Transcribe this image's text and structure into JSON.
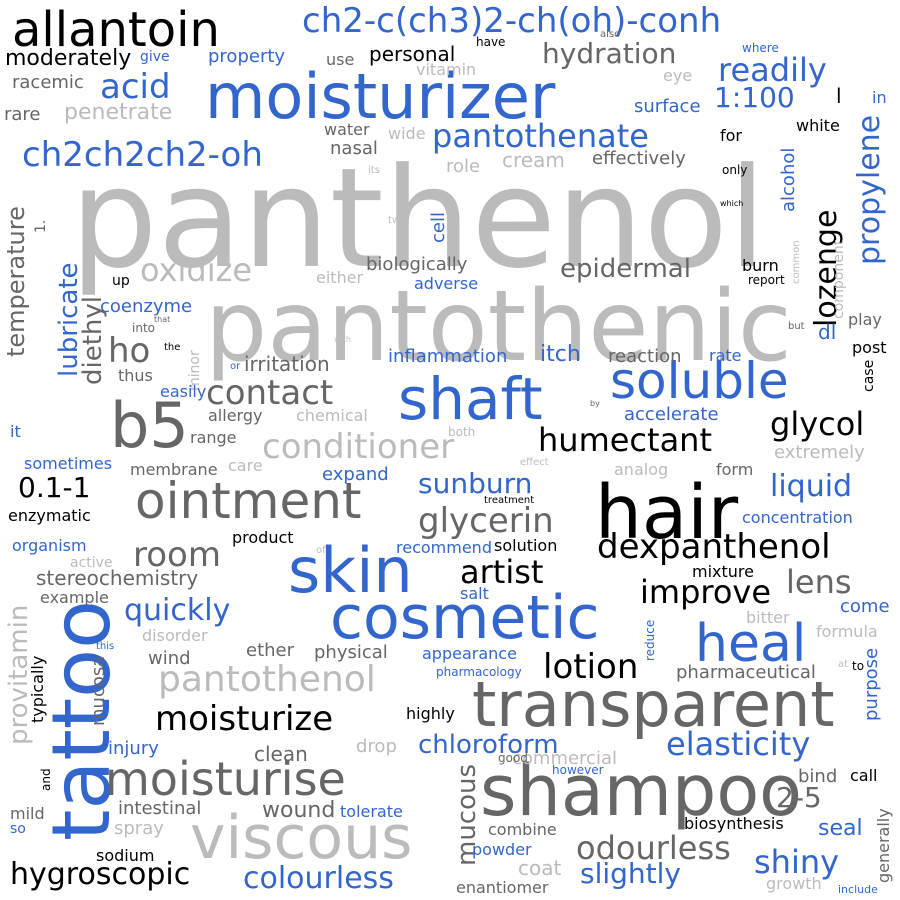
{
  "colors": {
    "black": "#000000",
    "dark_gray": "#666666",
    "light_gray": "#bbbbbb",
    "blue": "#3366cc"
  },
  "words": [
    {
      "text": "panthenol",
      "color": "light_gray"
    },
    {
      "text": "pantothenic",
      "color": "light_gray"
    },
    {
      "text": "hair",
      "color": "black"
    },
    {
      "text": "moisturizer",
      "color": "blue"
    },
    {
      "text": "tattoo",
      "color": "blue"
    },
    {
      "text": "shampoo",
      "color": "dark_gray"
    },
    {
      "text": "transparent",
      "color": "dark_gray"
    },
    {
      "text": "cosmetic",
      "color": "blue"
    },
    {
      "text": "viscous",
      "color": "light_gray"
    },
    {
      "text": "skin",
      "color": "blue"
    },
    {
      "text": "shaft",
      "color": "blue"
    },
    {
      "text": "ointment",
      "color": "dark_gray"
    },
    {
      "text": "soluble",
      "color": "blue"
    },
    {
      "text": "allantoin",
      "color": "black"
    },
    {
      "text": "moisturise",
      "color": "dark_gray"
    },
    {
      "text": "b5",
      "color": "dark_gray"
    },
    {
      "text": "heal",
      "color": "blue"
    },
    {
      "text": "ch2-c(ch3)2-ch(oh)-conh",
      "color": "blue"
    },
    {
      "text": "dexpanthenol",
      "color": "black"
    },
    {
      "text": "pantothenol",
      "color": "light_gray"
    },
    {
      "text": "moisturize",
      "color": "black"
    },
    {
      "text": "conditioner",
      "color": "light_gray"
    },
    {
      "text": "glycerin",
      "color": "dark_gray"
    },
    {
      "text": "humectant",
      "color": "black"
    },
    {
      "text": "contact",
      "color": "dark_gray"
    },
    {
      "text": "pantothenate",
      "color": "blue"
    },
    {
      "text": "elasticity",
      "color": "blue"
    },
    {
      "text": "lotion",
      "color": "black"
    },
    {
      "text": "odourless",
      "color": "dark_gray"
    },
    {
      "text": "ch2ch2ch2-oh",
      "color": "blue"
    },
    {
      "text": "room",
      "color": "dark_gray"
    },
    {
      "text": "improve",
      "color": "black"
    },
    {
      "text": "artist",
      "color": "black"
    },
    {
      "text": "quickly",
      "color": "blue"
    },
    {
      "text": "shiny",
      "color": "blue"
    },
    {
      "text": "acid",
      "color": "blue"
    },
    {
      "text": "oxidize",
      "color": "light_gray"
    },
    {
      "text": "hygroscopic",
      "color": "black"
    },
    {
      "text": "colourless",
      "color": "blue"
    },
    {
      "text": "glycol",
      "color": "black"
    },
    {
      "text": "readily",
      "color": "blue"
    },
    {
      "text": "lens",
      "color": "dark_gray"
    },
    {
      "text": "liquid",
      "color": "blue"
    },
    {
      "text": "hydration",
      "color": "dark_gray"
    },
    {
      "text": "sunburn",
      "color": "blue"
    },
    {
      "text": "lozenge",
      "color": "black"
    },
    {
      "text": "propylene",
      "color": "blue"
    },
    {
      "text": "chloroform",
      "color": "blue"
    },
    {
      "text": "slightly",
      "color": "blue"
    },
    {
      "text": "epidermal",
      "color": "dark_gray"
    },
    {
      "text": "1:100",
      "color": "blue"
    },
    {
      "text": "0.1-1",
      "color": "black"
    },
    {
      "text": "2-5",
      "color": "dark_gray"
    },
    {
      "text": "mucous",
      "color": "dark_gray"
    },
    {
      "text": "ho",
      "color": "dark_gray"
    },
    {
      "text": "lubricate",
      "color": "blue"
    },
    {
      "text": "provitamin",
      "color": "light_gray"
    },
    {
      "text": "diethyl",
      "color": "dark_gray"
    },
    {
      "text": "temperature",
      "color": "dark_gray"
    },
    {
      "text": "moderately",
      "color": "black"
    },
    {
      "text": "biologically",
      "color": "dark_gray"
    },
    {
      "text": "coenzyme",
      "color": "blue"
    },
    {
      "text": "irritation",
      "color": "dark_gray"
    },
    {
      "text": "inflammation",
      "color": "blue"
    },
    {
      "text": "itch",
      "color": "blue"
    },
    {
      "text": "reaction",
      "color": "dark_gray"
    },
    {
      "text": "rate",
      "color": "blue"
    },
    {
      "text": "stereochemistry",
      "color": "dark_gray"
    },
    {
      "text": "wound",
      "color": "dark_gray"
    },
    {
      "text": "intestinal",
      "color": "dark_gray"
    },
    {
      "text": "tolerate",
      "color": "blue"
    },
    {
      "text": "spray",
      "color": "light_gray"
    },
    {
      "text": "sodium",
      "color": "black"
    },
    {
      "text": "clean",
      "color": "dark_gray"
    },
    {
      "text": "enzymatic",
      "color": "black"
    },
    {
      "text": "mucosa",
      "color": "dark_gray"
    },
    {
      "text": "wind",
      "color": "dark_gray"
    },
    {
      "text": "ether",
      "color": "dark_gray"
    },
    {
      "text": "physical",
      "color": "dark_gray"
    },
    {
      "text": "appearance",
      "color": "blue"
    },
    {
      "text": "pharmaceutical",
      "color": "dark_gray"
    },
    {
      "text": "purpose",
      "color": "blue"
    },
    {
      "text": "highly",
      "color": "black"
    },
    {
      "text": "injury",
      "color": "blue"
    },
    {
      "text": "drop",
      "color": "light_gray"
    },
    {
      "text": "commercial",
      "color": "light_gray"
    },
    {
      "text": "bind",
      "color": "dark_gray"
    },
    {
      "text": "call",
      "color": "black"
    },
    {
      "text": "seal",
      "color": "blue"
    },
    {
      "text": "generally",
      "color": "dark_gray"
    },
    {
      "text": "biosynthesis",
      "color": "black"
    },
    {
      "text": "combine",
      "color": "dark_gray"
    },
    {
      "text": "powder",
      "color": "blue"
    },
    {
      "text": "coat",
      "color": "light_gray"
    },
    {
      "text": "enantiomer",
      "color": "dark_gray"
    },
    {
      "text": "growth",
      "color": "light_gray"
    },
    {
      "text": "include",
      "color": "blue"
    },
    {
      "text": "mild",
      "color": "dark_gray"
    },
    {
      "text": "so",
      "color": "blue"
    },
    {
      "text": "and",
      "color": "black"
    },
    {
      "text": "typically",
      "color": "black"
    },
    {
      "text": "personal",
      "color": "black"
    },
    {
      "text": "vitamin",
      "color": "light_gray"
    },
    {
      "text": "property",
      "color": "blue"
    },
    {
      "text": "use",
      "color": "dark_gray"
    },
    {
      "text": "give",
      "color": "blue"
    },
    {
      "text": "have",
      "color": "black"
    },
    {
      "text": "also",
      "color": "dark_gray"
    },
    {
      "text": "where",
      "color": "blue"
    },
    {
      "text": "eye",
      "color": "light_gray"
    },
    {
      "text": "surface",
      "color": "blue"
    },
    {
      "text": "l",
      "color": "black"
    },
    {
      "text": "in",
      "color": "blue"
    },
    {
      "text": "racemic",
      "color": "dark_gray"
    },
    {
      "text": "rare",
      "color": "dark_gray"
    },
    {
      "text": "penetrate",
      "color": "light_gray"
    },
    {
      "text": "water",
      "color": "dark_gray"
    },
    {
      "text": "wide",
      "color": "light_gray"
    },
    {
      "text": "nasal",
      "color": "dark_gray"
    },
    {
      "text": "for",
      "color": "black"
    },
    {
      "text": "white",
      "color": "black"
    },
    {
      "text": "alcohol",
      "color": "blue"
    },
    {
      "text": "cream",
      "color": "light_gray"
    },
    {
      "text": "effectively",
      "color": "dark_gray"
    },
    {
      "text": "only",
      "color": "black"
    },
    {
      "text": "role",
      "color": "light_gray"
    },
    {
      "text": "its",
      "color": "light_gray"
    },
    {
      "text": "which",
      "color": "black"
    },
    {
      "text": "two",
      "color": "light_gray"
    },
    {
      "text": "cell",
      "color": "blue"
    },
    {
      "text": "1.",
      "color": "dark_gray"
    },
    {
      "text": "either",
      "color": "light_gray"
    },
    {
      "text": "adverse",
      "color": "blue"
    },
    {
      "text": "up",
      "color": "black"
    },
    {
      "text": "burn",
      "color": "black"
    },
    {
      "text": "report",
      "color": "black"
    },
    {
      "text": "common",
      "color": "light_gray"
    },
    {
      "text": "component",
      "color": "light_gray"
    },
    {
      "text": "play",
      "color": "dark_gray"
    },
    {
      "text": "dl",
      "color": "blue"
    },
    {
      "text": "post",
      "color": "black"
    },
    {
      "text": "but",
      "color": "dark_gray"
    },
    {
      "text": "case",
      "color": "black"
    },
    {
      "text": "that",
      "color": "dark_gray"
    },
    {
      "text": "into",
      "color": "dark_gray"
    },
    {
      "text": "with",
      "color": "light_gray"
    },
    {
      "text": "the",
      "color": "black"
    },
    {
      "text": "minor",
      "color": "light_gray"
    },
    {
      "text": "or",
      "color": "blue"
    },
    {
      "text": "thus",
      "color": "dark_gray"
    },
    {
      "text": "easily",
      "color": "blue"
    },
    {
      "text": "allergy",
      "color": "dark_gray"
    },
    {
      "text": "chemical",
      "color": "light_gray"
    },
    {
      "text": "range",
      "color": "dark_gray"
    },
    {
      "text": "by",
      "color": "dark_gray"
    },
    {
      "text": "accelerate",
      "color": "blue"
    },
    {
      "text": "it",
      "color": "blue"
    },
    {
      "text": "both",
      "color": "light_gray"
    },
    {
      "text": "sometimes",
      "color": "blue"
    },
    {
      "text": "membrane",
      "color": "dark_gray"
    },
    {
      "text": "care",
      "color": "light_gray"
    },
    {
      "text": "effect",
      "color": "light_gray"
    },
    {
      "text": "analog",
      "color": "light_gray"
    },
    {
      "text": "form",
      "color": "dark_gray"
    },
    {
      "text": "extremely",
      "color": "light_gray"
    },
    {
      "text": "expand",
      "color": "blue"
    },
    {
      "text": "treatment",
      "color": "black"
    },
    {
      "text": "concentration",
      "color": "blue"
    },
    {
      "text": "organism",
      "color": "blue"
    },
    {
      "text": "product",
      "color": "black"
    },
    {
      "text": "of",
      "color": "light_gray"
    },
    {
      "text": "recommend",
      "color": "blue"
    },
    {
      "text": "solution",
      "color": "black"
    },
    {
      "text": "active",
      "color": "light_gray"
    },
    {
      "text": "mixture",
      "color": "black"
    },
    {
      "text": "salt",
      "color": "blue"
    },
    {
      "text": "example",
      "color": "dark_gray"
    },
    {
      "text": "come",
      "color": "blue"
    },
    {
      "text": "bitter",
      "color": "light_gray"
    },
    {
      "text": "reduce",
      "color": "blue"
    },
    {
      "text": "disorder",
      "color": "light_gray"
    },
    {
      "text": "formula",
      "color": "light_gray"
    },
    {
      "text": "this",
      "color": "blue"
    },
    {
      "text": "pharmacology",
      "color": "blue"
    },
    {
      "text": "at",
      "color": "light_gray"
    },
    {
      "text": "to",
      "color": "black"
    },
    {
      "text": "good",
      "color": "dark_gray"
    },
    {
      "text": "however",
      "color": "blue"
    }
  ]
}
